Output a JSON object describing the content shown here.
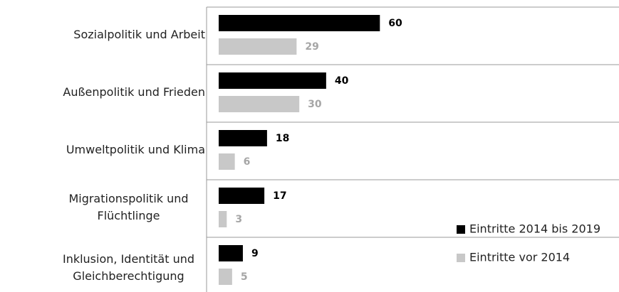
{
  "chart_data": {
    "type": "bar",
    "orientation": "horizontal",
    "categories": [
      "Sozialpolitik und Arbeit",
      "Außenpolitik und Frieden",
      "Umweltpolitik und Klima",
      "Migrationspolitik und Flüchtlinge",
      "Inklusion, Identität und Gleichberechtigung"
    ],
    "series": [
      {
        "name": "Eintritte 2014 bis 2019",
        "color": "#000000",
        "values": [
          60,
          40,
          18,
          17,
          9
        ]
      },
      {
        "name": "Eintritte vor 2014",
        "color": "#c8c8c8",
        "values": [
          29,
          30,
          6,
          3,
          5
        ]
      }
    ],
    "xlim": [
      0,
      149
    ]
  }
}
